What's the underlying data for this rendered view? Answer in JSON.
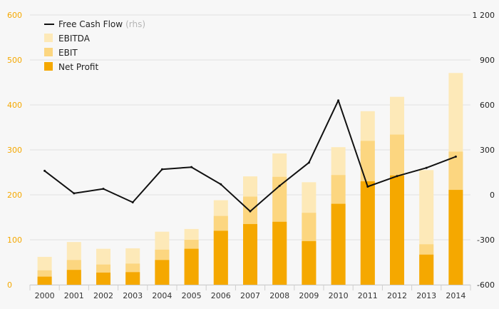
{
  "chart_data": {
    "type": "bar",
    "categories": [
      "2000",
      "2001",
      "2002",
      "2003",
      "2004",
      "2005",
      "2006",
      "2007",
      "2008",
      "2009",
      "2010",
      "2011",
      "2012",
      "2013",
      "2014"
    ],
    "series": [
      {
        "name": "EBITDA",
        "kind": "bar",
        "axis": "left",
        "color": "#fde9b8",
        "values": [
          62,
          95,
          80,
          81,
          118,
          124,
          188,
          241,
          292,
          228,
          306,
          386,
          418,
          255,
          471
        ]
      },
      {
        "name": "EBIT",
        "kind": "bar",
        "axis": "left",
        "color": "#fcd680",
        "values": [
          32,
          55,
          45,
          47,
          78,
          100,
          153,
          196,
          240,
          160,
          244,
          320,
          334,
          90,
          296
        ]
      },
      {
        "name": "Net Profit",
        "kind": "bar",
        "axis": "left",
        "color": "#f5a800",
        "values": [
          18,
          33,
          27,
          28,
          55,
          80,
          120,
          135,
          140,
          97,
          180,
          230,
          243,
          67,
          211
        ]
      },
      {
        "name": "Free Cash Flow",
        "suffix": "(rhs)",
        "kind": "line",
        "axis": "right",
        "color": "#111111",
        "values": [
          160,
          10,
          40,
          -50,
          170,
          185,
          70,
          -110,
          60,
          215,
          630,
          55,
          125,
          180,
          255
        ]
      }
    ],
    "y_left": {
      "ticks": [
        "0",
        "100",
        "200",
        "300",
        "400",
        "500",
        "600"
      ],
      "values": [
        0,
        100,
        200,
        300,
        400,
        500,
        600
      ],
      "range": [
        0,
        600
      ]
    },
    "y_right": {
      "ticks": [
        "-600",
        "-300",
        "0",
        "300",
        "600",
        "900",
        "1 200"
      ],
      "values": [
        -600,
        -300,
        0,
        300,
        600,
        900,
        1200
      ],
      "range": [
        -600,
        1200
      ]
    },
    "grid": true,
    "legend": "top-left"
  }
}
